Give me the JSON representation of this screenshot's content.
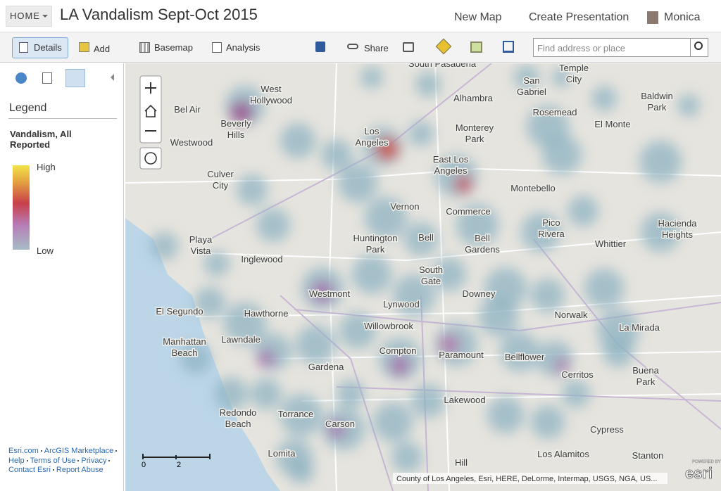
{
  "header": {
    "home": "HOME",
    "title": "LA Vandalism Sept-Oct 2015",
    "nav": [
      "New Map",
      "Create Presentation",
      "Monica"
    ]
  },
  "toolbar": {
    "buttons": [
      "Details",
      "Add",
      "Basemap",
      "Analysis",
      "Share"
    ],
    "search_placeholder": "Find address or place"
  },
  "sidebar": {
    "heading": "Legend",
    "layer": "Vandalism, All Reported",
    "high": "High",
    "low": "Low",
    "footer_links": [
      "Esri.com",
      "ArcGIS Marketplace",
      "Help",
      "Terms of Use",
      "Privacy",
      "Contact Esri",
      "Report Abuse"
    ]
  },
  "map": {
    "labels": [
      [
        "Beverly",
        "Hills"
      ],
      [
        "West",
        "Hollywood"
      ],
      [
        "Los",
        "Angeles"
      ],
      [
        "East Los",
        "Angeles"
      ],
      [
        "Culver",
        "City"
      ],
      [
        "Inglewood"
      ],
      [
        "Huntington",
        "Park"
      ],
      [
        "Bell"
      ],
      [
        "Bell",
        "Gardens"
      ],
      [
        "South",
        "Gate"
      ],
      [
        "Westmont"
      ],
      [
        "Hawthorne"
      ],
      [
        "Lynwood"
      ],
      [
        "Downey"
      ],
      [
        "Norwalk"
      ],
      [
        "Willowbrook"
      ],
      [
        "Compton"
      ],
      [
        "Paramount"
      ],
      [
        "Bellflower"
      ],
      [
        "Lawndale"
      ],
      [
        "Manhattan",
        "Beach"
      ],
      [
        "Gardena"
      ],
      [
        "El Segundo"
      ],
      [
        "Playa",
        "Vista"
      ],
      [
        "Torrance"
      ],
      [
        "Carson"
      ],
      [
        "Redondo",
        "Beach"
      ],
      [
        "Lakewood"
      ],
      [
        "Cerritos"
      ],
      [
        "La Mirada"
      ],
      [
        "Buena",
        "Park"
      ],
      [
        "Cypress"
      ],
      [
        "Pico",
        "Rivera"
      ],
      [
        "Montebello"
      ],
      [
        "Monterey",
        "Park"
      ],
      [
        "Alhambra"
      ],
      [
        "El Monte"
      ],
      [
        "Rosemead"
      ],
      [
        "Whittier"
      ],
      [
        "Hacienda",
        "Heights"
      ],
      [
        "Baldwin",
        "Park"
      ],
      [
        "Temple",
        "City"
      ],
      [
        "San",
        "Gabriel"
      ],
      [
        "Stanton"
      ],
      [
        "Los Alamitos"
      ],
      [
        "Hill"
      ],
      [
        "Lomita"
      ],
      [
        "South Pasadena"
      ],
      [
        "Vernon"
      ],
      [
        "Commerce"
      ],
      [
        "Bel Air"
      ],
      [
        "Westwood"
      ]
    ],
    "scale": [
      "0",
      "2"
    ],
    "attribution": "County of Los Angeles, Esri, HERE, DeLorme, Intermap, USGS, NGA, US...",
    "logo_small": "POWERED BY",
    "logo": "esri"
  }
}
